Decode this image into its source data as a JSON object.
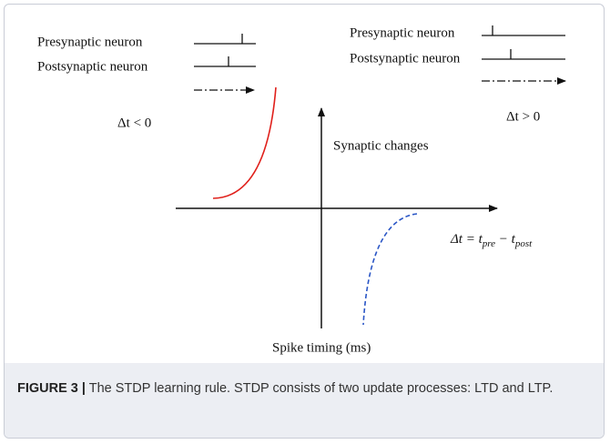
{
  "figure": {
    "left_legend": {
      "presynaptic": "Presynaptic neuron",
      "postsynaptic": "Postsynaptic neuron",
      "delta": "Δt < 0"
    },
    "right_legend": {
      "presynaptic": "Presynaptic neuron",
      "postsynaptic": "Postsynaptic neuron",
      "delta": "Δt > 0"
    },
    "y_axis_label": "Synaptic changes",
    "x_axis_label": [
      "Δt = t",
      "pre",
      " − t",
      "post"
    ],
    "bottom_label": "Spike timing (ms)"
  },
  "caption": {
    "label": "FIGURE 3 |",
    "text": "The STDP learning rule. STDP consists of two update processes: LTD and LTP."
  }
}
